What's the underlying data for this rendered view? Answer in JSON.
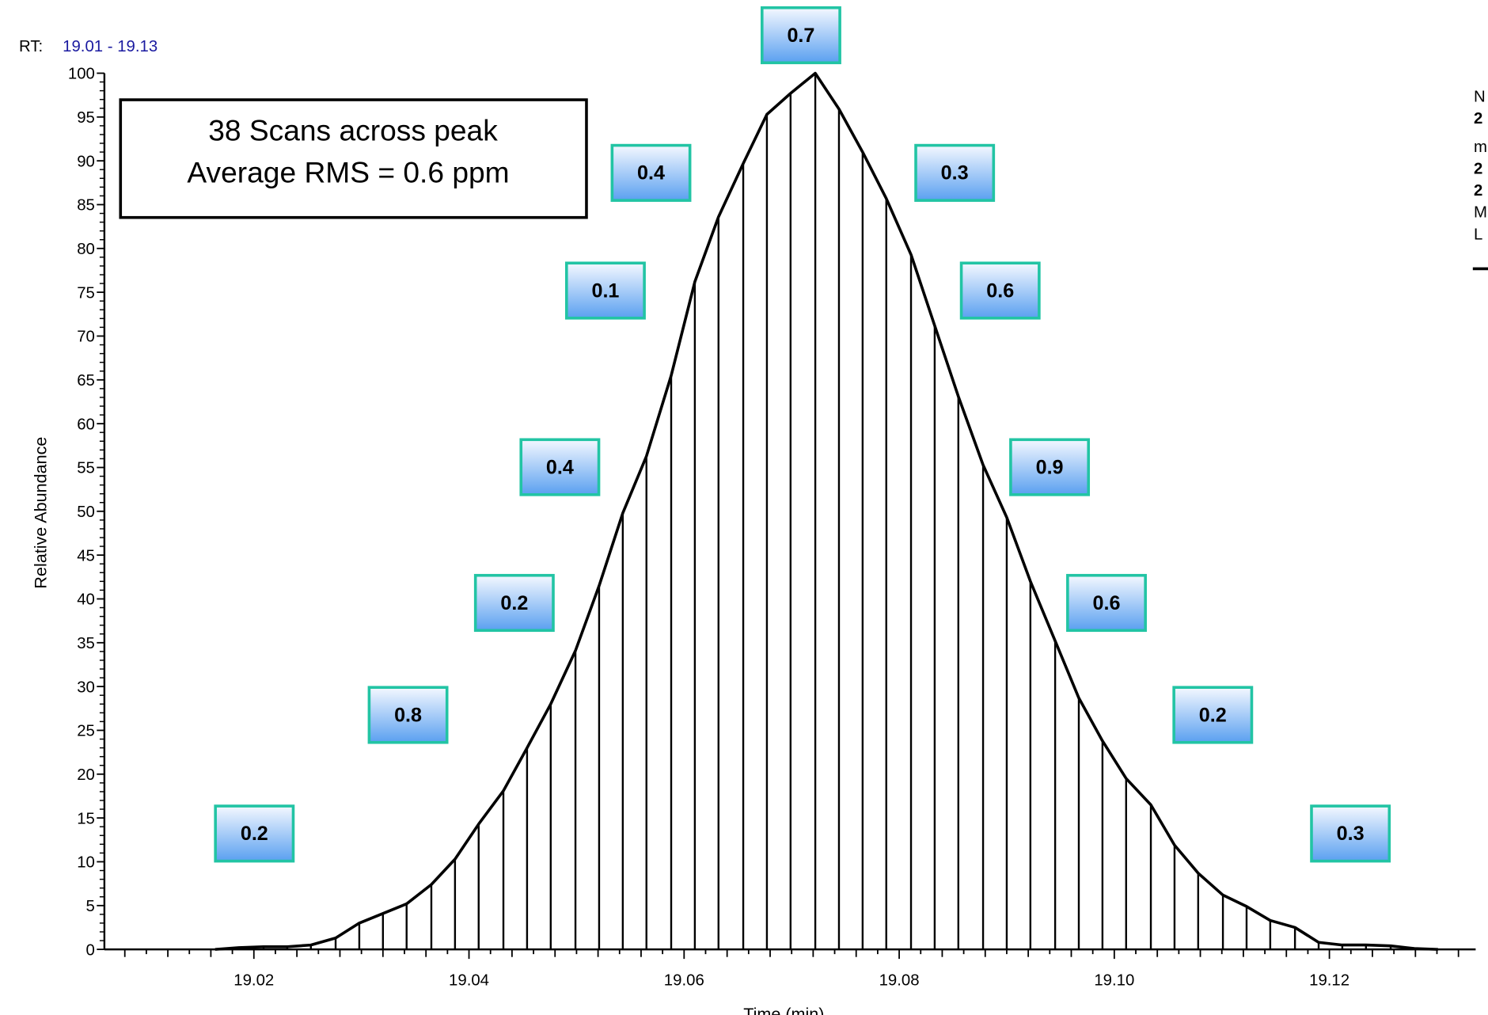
{
  "chart_data": {
    "type": "line",
    "rt_label": "RT:",
    "rt_range": "19.01 - 19.13",
    "box_lines": [
      "38 Scans across peak",
      "Average RMS = 0.6 ppm"
    ],
    "ylabel": "Relative Abundance",
    "xlabel": "Time (min)",
    "side_text": [
      "N",
      "2",
      "m",
      "2",
      "2",
      "M",
      "L"
    ],
    "color": "#000000",
    "drop_lines": true,
    "xlim": [
      19.0061,
      19.1336
    ],
    "ylim": [
      0,
      100
    ],
    "xticks": [
      19.02,
      19.04,
      19.06,
      19.08,
      {
        "value": 19.1,
        "label": "19.10"
      },
      19.12
    ],
    "yticks": [
      0,
      5,
      10,
      15,
      20,
      25,
      30,
      35,
      40,
      45,
      50,
      55,
      60,
      65,
      70,
      75,
      80,
      85,
      90,
      95,
      100
    ],
    "x": [
      19.0164,
      19.0186,
      19.0209,
      19.0231,
      19.0253,
      19.0276,
      19.0298,
      19.032,
      19.0342,
      19.0365,
      19.0387,
      19.0409,
      19.0432,
      19.0454,
      19.0476,
      19.0499,
      19.0521,
      19.0543,
      19.0565,
      19.0588,
      19.061,
      19.0632,
      19.0655,
      19.0677,
      19.0699,
      19.0722,
      19.0744,
      19.0766,
      19.0788,
      19.0811,
      19.0833,
      19.0855,
      19.0878,
      19.09,
      19.0922,
      19.0945,
      19.0967,
      19.0989,
      19.1011,
      19.1034,
      19.1056,
      19.1078,
      19.1101,
      19.1123,
      19.1145,
      19.1168,
      19.119,
      19.1212,
      19.1234,
      19.1257,
      19.1279,
      19.1301
    ],
    "values": [
      0.0,
      0.2,
      0.3,
      0.3,
      0.5,
      1.3,
      3.0,
      4.1,
      5.2,
      7.4,
      10.3,
      14.3,
      18.1,
      23.0,
      28.0,
      34.1,
      41.5,
      49.8,
      56.3,
      65.5,
      76.2,
      83.6,
      89.7,
      95.3,
      97.7,
      100,
      95.9,
      91.0,
      85.7,
      79.3,
      71.2,
      63.1,
      55.3,
      49.3,
      42.0,
      35.2,
      28.7,
      23.8,
      19.5,
      16.5,
      11.9,
      8.7,
      6.2,
      4.9,
      3.3,
      2.5,
      0.8,
      0.5,
      0.5,
      0.4,
      0.1,
      0.0
    ],
    "annotations": [
      "0.2",
      "0.8",
      "0.2",
      "0.4",
      "0.1",
      "0.4",
      "0.7",
      "0.3",
      "0.6",
      "0.9",
      "0.6",
      "0.2",
      "0.3"
    ]
  }
}
